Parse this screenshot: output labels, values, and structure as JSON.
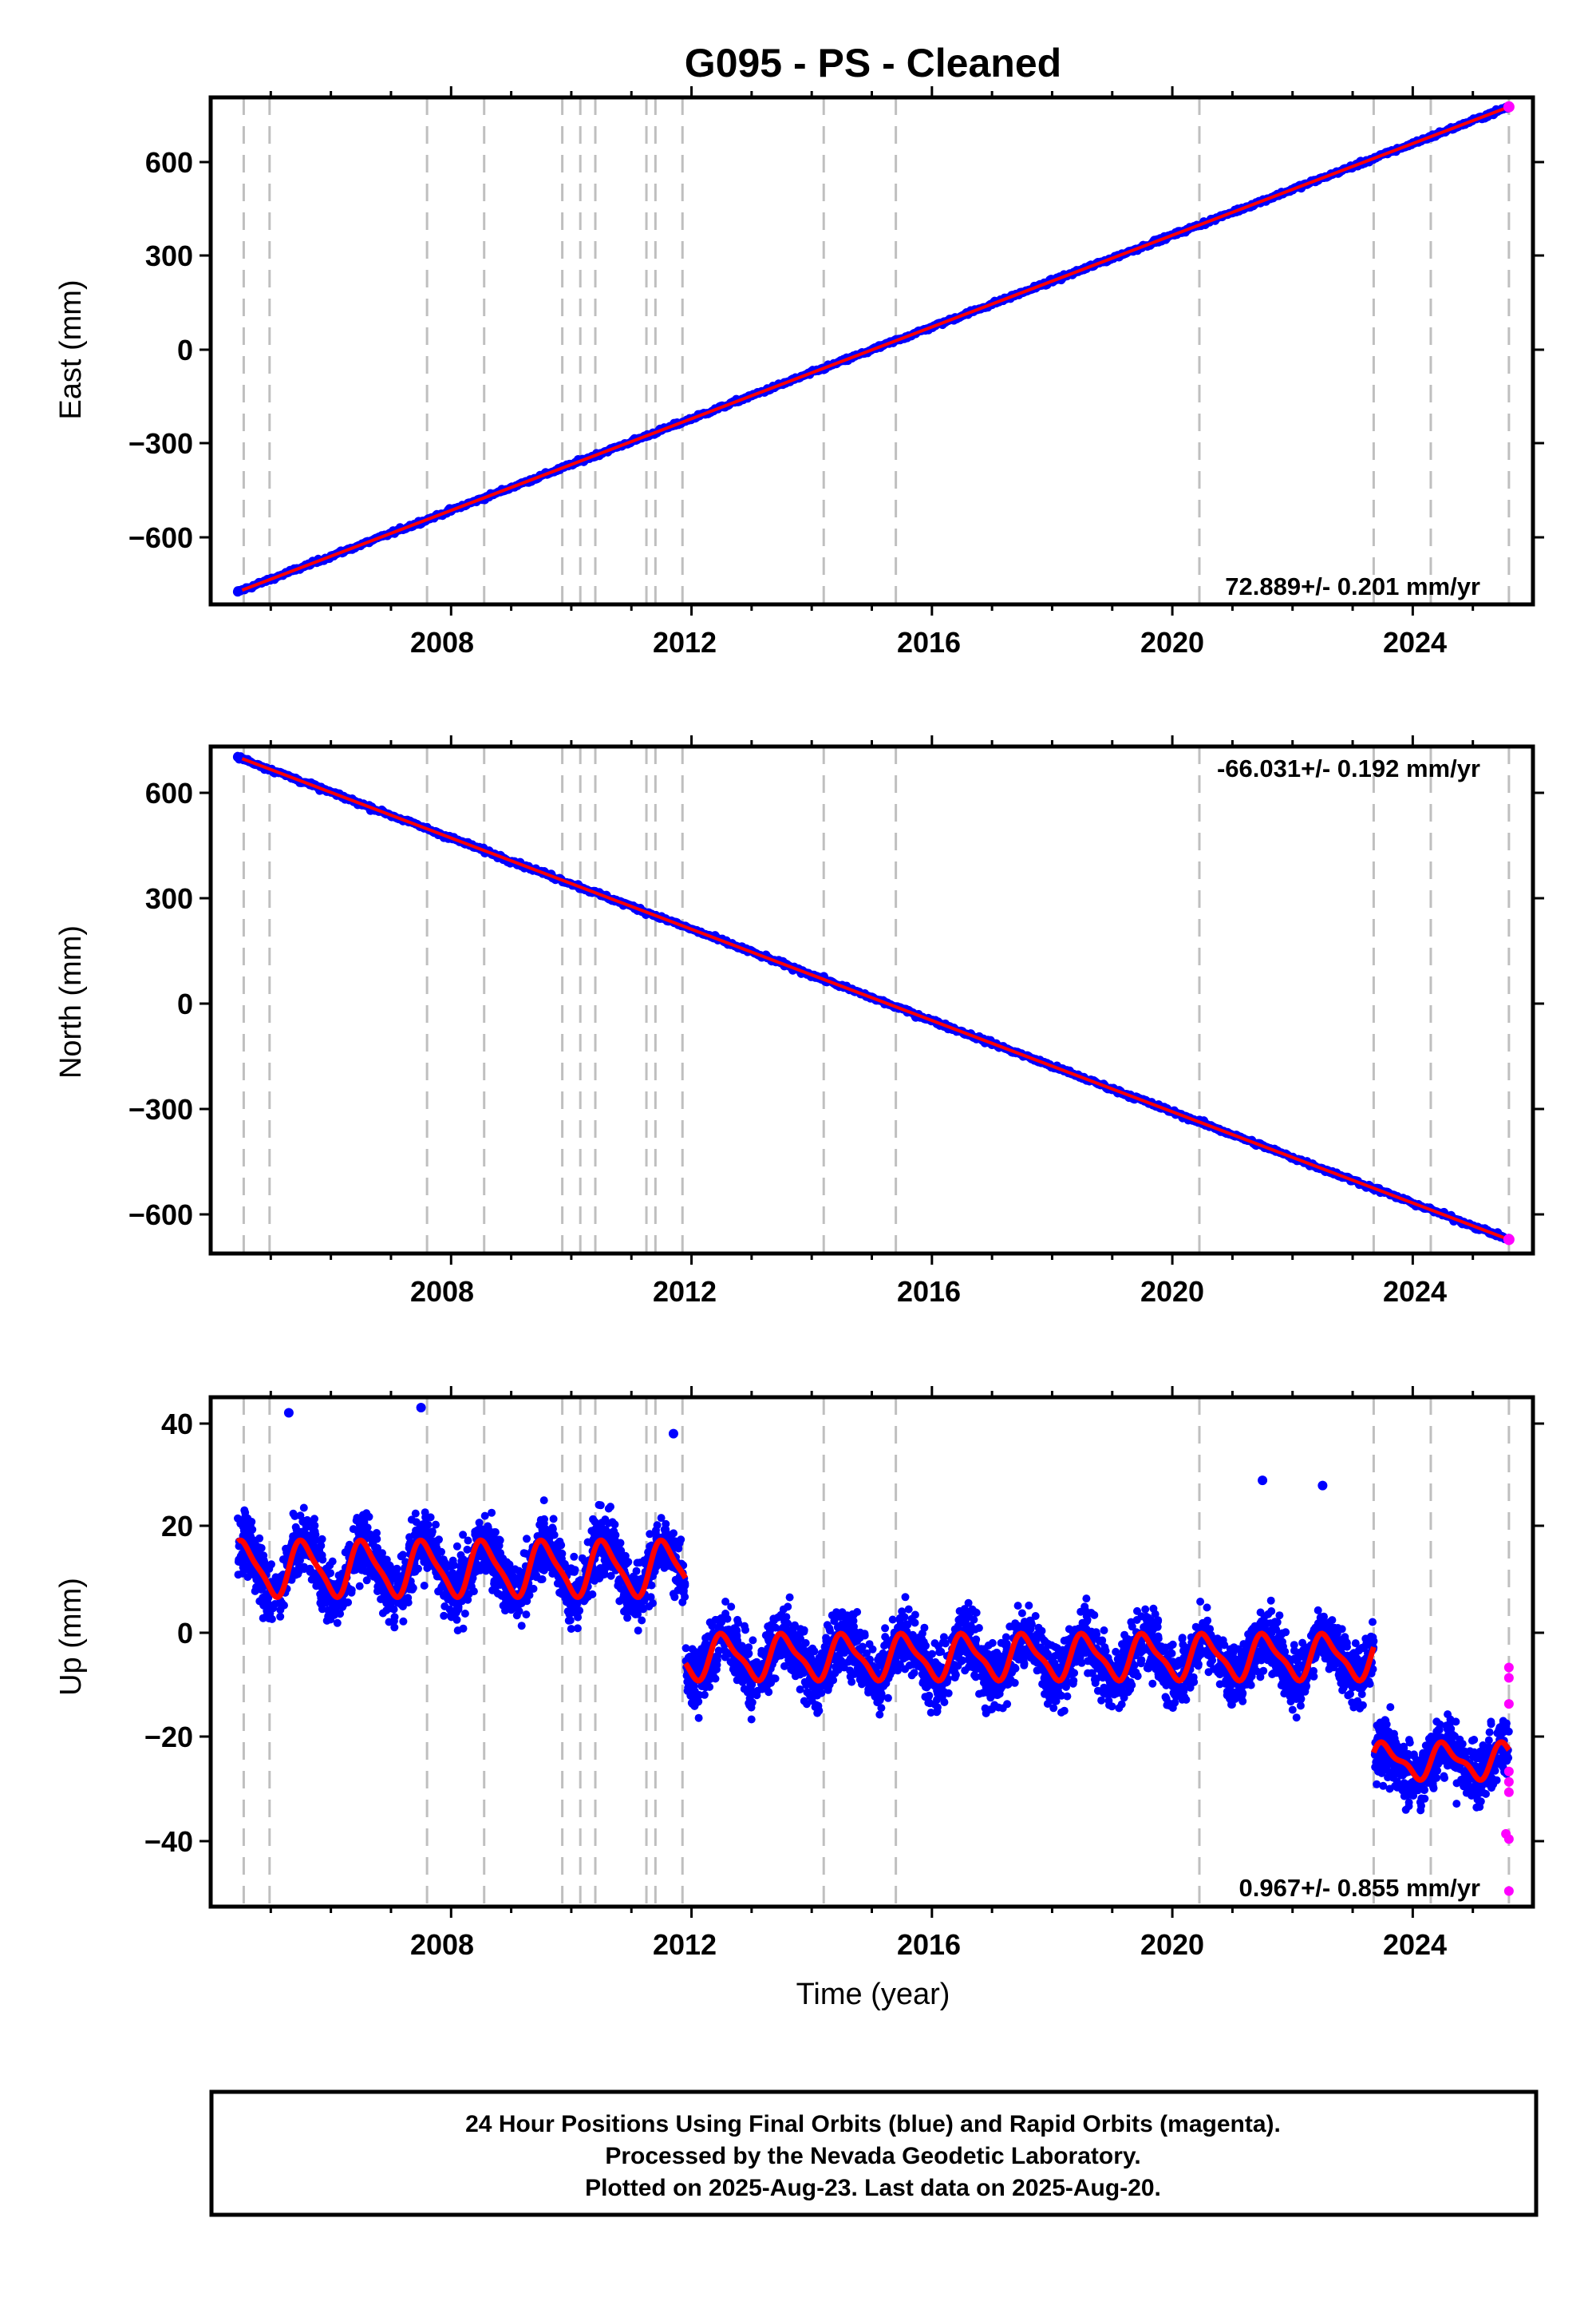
{
  "chart_data": {
    "type": "scatter",
    "title": "G095  - PS - Cleaned",
    "xlabel": "Time (year)",
    "x_ticks": [
      "2008",
      "2012",
      "2016",
      "2020",
      "2024"
    ],
    "x_range": [
      2004.0,
      2026.0
    ],
    "series_legend": [
      "Final Orbits (blue)",
      "Rapid Orbits (magenta)",
      "Model fit (red)"
    ],
    "colors": {
      "final": "#0000ff",
      "rapid": "#ff00ff",
      "model": "#ff0000",
      "step_lines": "#bfbfbf"
    },
    "step_epochs": [
      2004.55,
      2004.98,
      2007.6,
      2008.55,
      2009.85,
      2010.15,
      2010.4,
      2011.25,
      2011.4,
      2011.85,
      2014.2,
      2015.4,
      2020.45,
      2023.35,
      2024.3,
      2025.6
    ],
    "panels": [
      {
        "name": "east",
        "ylabel": "East (mm)",
        "yticks": [
          "600",
          "300",
          "0",
          "−300",
          "−600"
        ],
        "ylim": [
          -810,
          800
        ],
        "rate_label": "72.889+/- 0.201 mm/yr",
        "trend": {
          "start": [
            2004.45,
            -770
          ],
          "end": [
            2025.6,
            770
          ]
        }
      },
      {
        "name": "north",
        "ylabel": "North (mm)",
        "yticks": [
          "600",
          "300",
          "0",
          "−300",
          "−600"
        ],
        "ylim": [
          -720,
          730
        ],
        "rate_label": "-66.031+/- 0.192 mm/yr",
        "trend": {
          "start": [
            2004.45,
            700
          ],
          "end": [
            2025.6,
            -680
          ]
        }
      },
      {
        "name": "up",
        "ylabel": "Up (mm)",
        "yticks": [
          "40",
          "20",
          "0",
          "−20",
          "−40"
        ],
        "ylim": [
          -53,
          45
        ],
        "rate_label": "0.967+/- 0.855 mm/yr",
        "segments": [
          {
            "x_range": [
              2004.45,
              2011.9
            ],
            "mean": 12,
            "annual_amplitude": 5
          },
          {
            "x_range": [
              2011.9,
              2023.35
            ],
            "mean": -5,
            "annual_amplitude": 4
          },
          {
            "x_range": [
              2023.35,
              2025.6
            ],
            "mean": -25,
            "annual_amplitude": 3
          }
        ],
        "outliers": [
          [
            2005.3,
            42
          ],
          [
            2007.5,
            43
          ],
          [
            2011.7,
            38
          ],
          [
            2021.5,
            29
          ],
          [
            2022.5,
            28
          ],
          [
            2025.6,
            -50
          ],
          [
            2025.6,
            -40
          ],
          [
            2025.55,
            -39
          ]
        ]
      }
    ]
  },
  "footer": {
    "line1": "24 Hour Positions Using Final Orbits (blue) and Rapid Orbits (magenta).",
    "line2": "Processed by the Nevada Geodetic Laboratory.",
    "line3": "Plotted on 2025-Aug-23. Last data on 2025-Aug-20."
  }
}
